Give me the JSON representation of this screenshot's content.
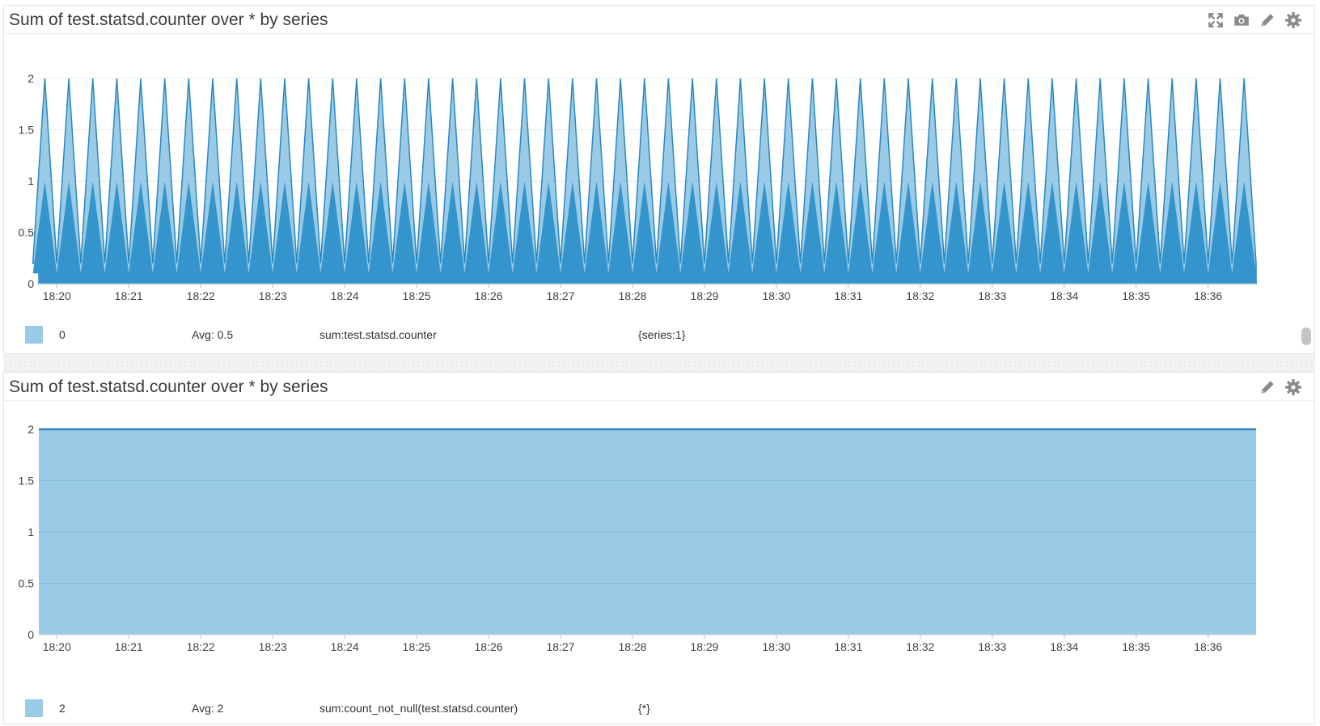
{
  "colors": {
    "fill_light": "#9acbe6",
    "fill_dark": "#3494cc",
    "line": "#2b87c0",
    "grid": "#e9e9e9",
    "legend_swatch": "#9acbe6"
  },
  "panels": [
    {
      "title": "Sum of test.statsd.counter over * by series",
      "icons": [
        "expand-icon",
        "camera-icon",
        "pencil-icon",
        "gear-icon"
      ],
      "legend": {
        "value": "0",
        "avg": "Avg: 0.5",
        "query": "sum:test.statsd.counter",
        "scope": "{series:1}"
      }
    },
    {
      "title": "Sum of test.statsd.counter over * by series",
      "icons": [
        "pencil-icon",
        "gear-icon"
      ],
      "legend": {
        "value": "2",
        "avg": "Avg: 2",
        "query": "sum:count_not_null(test.statsd.counter)",
        "scope": "{*}"
      }
    }
  ],
  "chart_data": [
    {
      "type": "area",
      "title": "Sum of test.statsd.counter over * by series",
      "xlabel": "",
      "ylabel": "",
      "x_ticks": [
        "18:20",
        "18:21",
        "18:22",
        "18:23",
        "18:24",
        "18:25",
        "18:26",
        "18:27",
        "18:28",
        "18:29",
        "18:30",
        "18:31",
        "18:32",
        "18:33",
        "18:34",
        "18:35",
        "18:36"
      ],
      "y_ticks": [
        "0",
        "0.5",
        "1",
        "1.5",
        "2"
      ],
      "ylim": [
        0,
        2
      ],
      "xlim": [
        "18:19:45",
        "18:36:40"
      ],
      "grid": true,
      "series": [
        {
          "pattern": "triangular pulses, peak 2 every 20s starting 18:19:50, returning to ~0.2 between peaks",
          "peak_value": 2,
          "trough_value": 0.2,
          "period_seconds": 20,
          "first_peak": "18:19:50",
          "peak_count": 51
        }
      ]
    },
    {
      "type": "area",
      "title": "Sum of test.statsd.counter over * by series",
      "xlabel": "",
      "ylabel": "",
      "x_ticks": [
        "18:20",
        "18:21",
        "18:22",
        "18:23",
        "18:24",
        "18:25",
        "18:26",
        "18:27",
        "18:28",
        "18:29",
        "18:30",
        "18:31",
        "18:32",
        "18:33",
        "18:34",
        "18:35",
        "18:36"
      ],
      "y_ticks": [
        "0",
        "0.5",
        "1",
        "1.5",
        "2"
      ],
      "ylim": [
        0,
        2
      ],
      "xlim": [
        "18:19:45",
        "18:36:40"
      ],
      "grid": true,
      "series": [
        {
          "x": [
            "18:19:45",
            "18:36:40"
          ],
          "values": [
            2,
            2
          ]
        }
      ]
    }
  ]
}
